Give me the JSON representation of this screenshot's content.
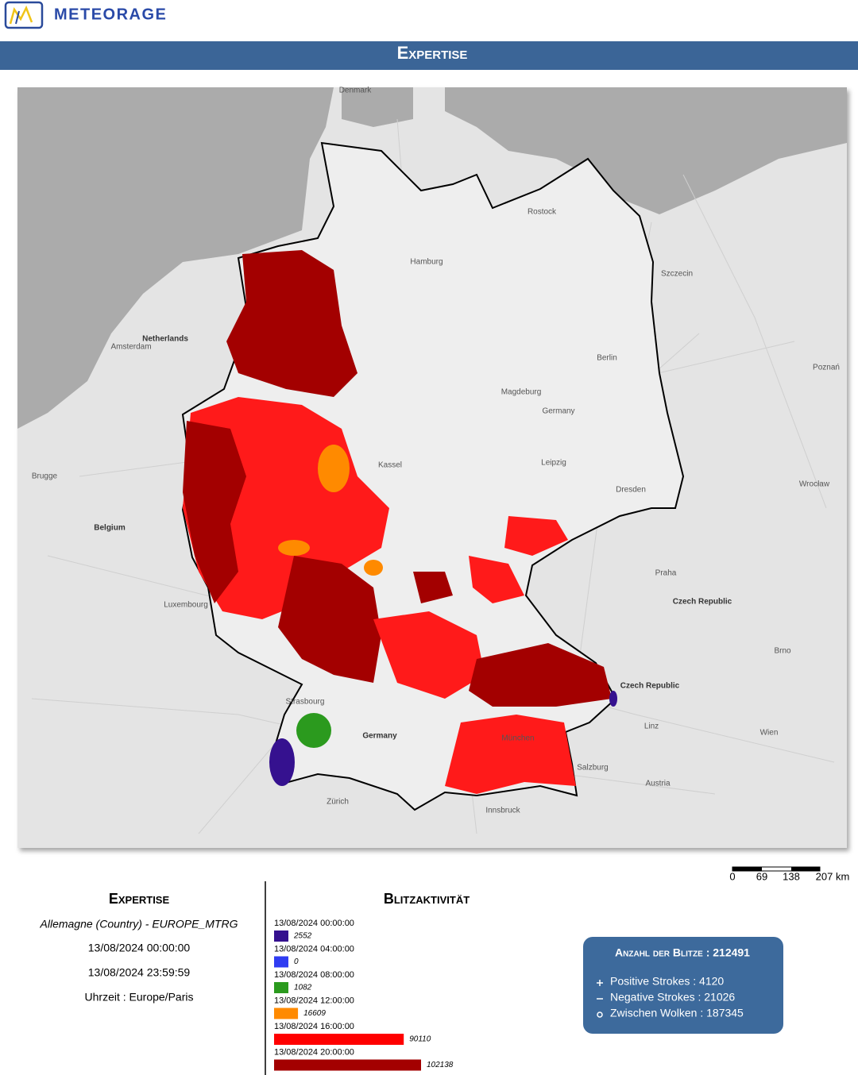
{
  "header": {
    "brand": "METEORAGE",
    "title": "Expertise"
  },
  "map": {
    "labels": [
      "Denmark",
      "Netherlands",
      "Belgium",
      "Luxembourg",
      "Germany",
      "Germany",
      "Czech Republic",
      "Czech Republic",
      "Austria",
      "Hamburg",
      "Berlin",
      "Praha",
      "Wien",
      "Amsterdam",
      "Brugge",
      "Strasbourg",
      "Zürich",
      "Salzburg",
      "Leipzig",
      "Kassel",
      "Rostock",
      "Poznań",
      "Wrocław",
      "Magdeburg",
      "Dresden",
      "München",
      "Innsbruck",
      "Brno",
      "Linz",
      "Szczecin"
    ],
    "scale": [
      "0",
      "69",
      "138",
      "207 km"
    ]
  },
  "expertise": {
    "title": "Expertise",
    "region": "Allemagne (Country) - EUROPE_MTRG",
    "start": "13/08/2024 00:00:00",
    "end": "13/08/2024 23:59:59",
    "timezone": "Uhrzeit : Europe/Paris"
  },
  "activity": {
    "title": "Blitzaktivität",
    "times": [
      "13/08/2024 00:00:00",
      "13/08/2024 04:00:00",
      "13/08/2024 08:00:00",
      "13/08/2024 12:00:00",
      "13/08/2024 16:00:00",
      "13/08/2024 20:00:00"
    ],
    "values": [
      2552,
      0,
      1082,
      16609,
      90110,
      102138
    ],
    "colors": [
      "#35118f",
      "#2f3cf2",
      "#2b9a1e",
      "#ff8a00",
      "#ff0000",
      "#a30000"
    ]
  },
  "stats": {
    "title": "Anzahl der Blitze : 212491",
    "items": [
      "Positive Strokes : 4120",
      "Negative Strokes : 21026",
      "Zwischen Wolken : 187345"
    ]
  }
}
